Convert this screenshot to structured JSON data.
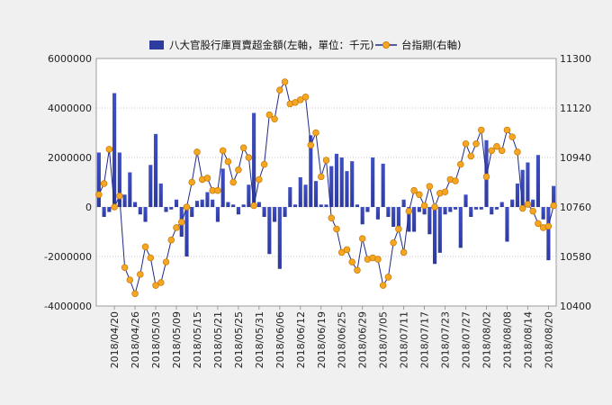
{
  "chart_data": {
    "type": "bar+line",
    "legend": {
      "placement": "top-center",
      "bar_label": "八大官股行庫買賣超金額(左軸，單位：千元)",
      "line_label": "台指期(右軸)"
    },
    "colors": {
      "bar": "#2e3a9e",
      "line": "#1f2a8a",
      "marker": "#f5a623",
      "marker_edge": "#c77700"
    },
    "y_left": {
      "min": -4000000,
      "max": 6000000,
      "ticks": [
        "6000000",
        "4000000",
        "2000000",
        "0",
        "-2000000",
        "-4000000"
      ]
    },
    "y_right": {
      "min": 10400,
      "max": 11300,
      "ticks": [
        "11300",
        "11120",
        "10940",
        "10760",
        "10580",
        "10400"
      ]
    },
    "x_tick_labels": [
      "2018/04/20",
      "2018/04/26",
      "2018/05/03",
      "2018/05/09",
      "2018/05/15",
      "2018/05/21",
      "2018/05/25",
      "2018/05/31",
      "2018/06/06",
      "2018/06/12",
      "2018/06/19",
      "2018/06/25",
      "2018/06/29",
      "2018/07/05",
      "2018/07/11",
      "2018/07/17",
      "2018/07/23",
      "2018/07/27",
      "2018/08/02",
      "2018/08/08",
      "2018/08/14",
      "2018/08/20"
    ],
    "x_tick_every": 4,
    "bars": [
      2200000,
      -400000,
      -200000,
      4600000,
      2200000,
      500000,
      1400000,
      200000,
      -300000,
      -600000,
      1700000,
      2950000,
      950000,
      -200000,
      -100000,
      300000,
      -1200000,
      -2000000,
      -400000,
      250000,
      300000,
      600000,
      300000,
      -600000,
      1550000,
      200000,
      100000,
      -300000,
      100000,
      900000,
      3800000,
      200000,
      -400000,
      -1900000,
      -600000,
      -2500000,
      -400000,
      800000,
      100000,
      1200000,
      900000,
      2900000,
      1050000,
      100000,
      100000,
      1650000,
      2150000,
      2000000,
      1450000,
      1850000,
      100000,
      -700000,
      -200000,
      2000000,
      -500000,
      1750000,
      -400000,
      -800000,
      -1000000,
      300000,
      -1000000,
      -1000000,
      -200000,
      -300000,
      -1100000,
      -2300000,
      -1850000,
      -300000,
      -200000,
      -100000,
      -1650000,
      500000,
      -400000,
      -100000,
      -100000,
      2700000,
      -300000,
      -100000,
      200000,
      -1400000,
      300000,
      950000,
      1500000,
      1800000,
      300000,
      2100000,
      -500000,
      -2150000,
      850000
    ],
    "line": [
      10805,
      10845,
      10970,
      10760,
      10800,
      10540,
      10495,
      10445,
      10515,
      10615,
      10575,
      10475,
      10485,
      10560,
      10640,
      10685,
      10705,
      10760,
      10850,
      10960,
      10860,
      10865,
      10820,
      10820,
      10965,
      10925,
      10850,
      10895,
      10975,
      10940,
      10765,
      10860,
      10915,
      11095,
      11080,
      11185,
      11215,
      11135,
      11140,
      11150,
      11160,
      10985,
      11030,
      10870,
      10930,
      10720,
      10680,
      10595,
      10605,
      10560,
      10530,
      10645,
      10570,
      10575,
      10570,
      10475,
      10505,
      10630,
      10680,
      10595,
      10745,
      10820,
      10805,
      10765,
      10835,
      10760,
      10810,
      10815,
      10860,
      10855,
      10915,
      10990,
      10945,
      10990,
      11040,
      10870,
      10965,
      10980,
      10965,
      11040,
      11015,
      10960,
      10755,
      10770,
      10745,
      10700,
      10685,
      10690,
      10765
    ]
  }
}
